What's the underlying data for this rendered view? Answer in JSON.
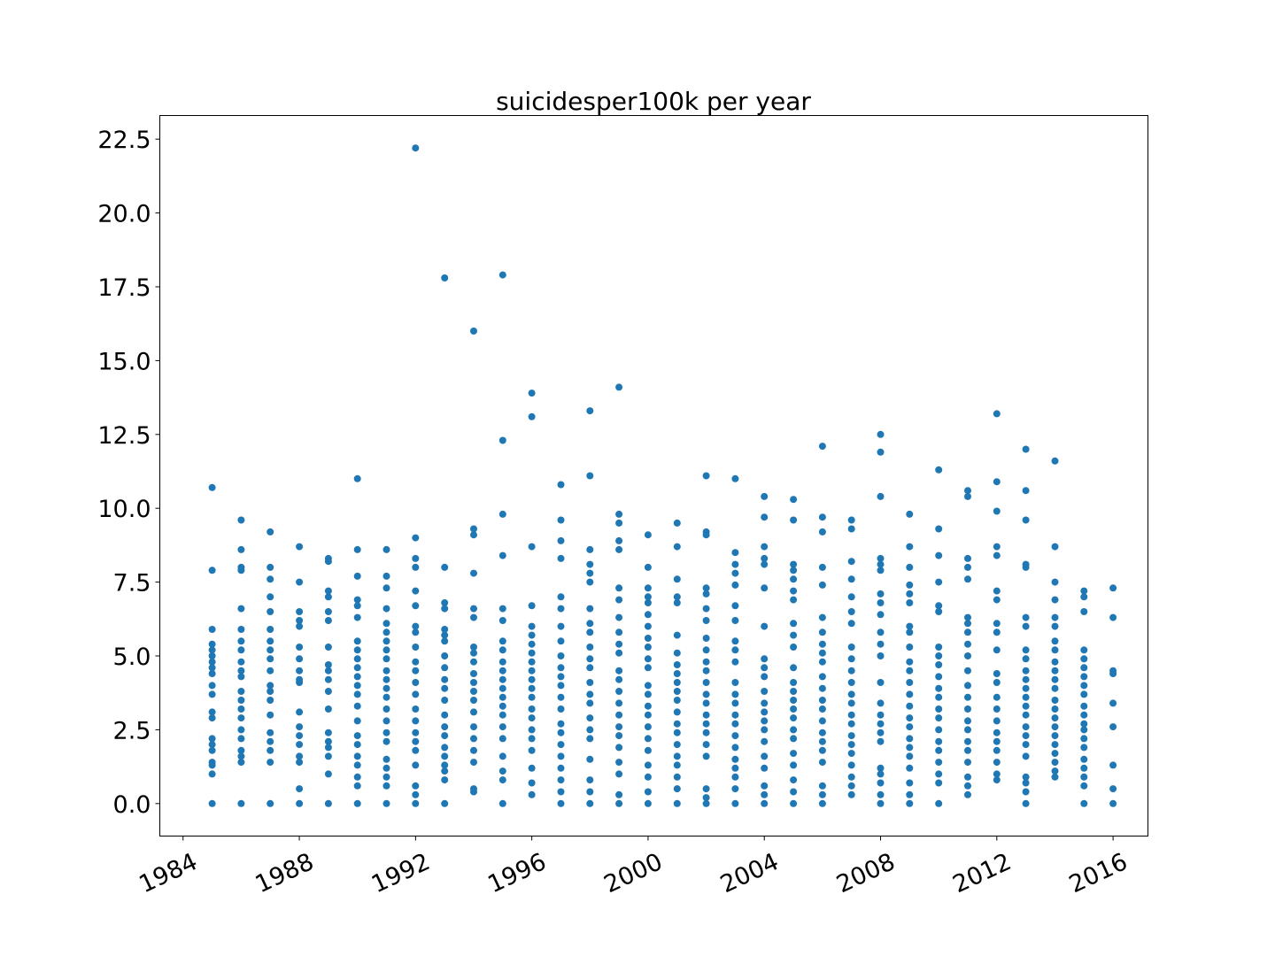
{
  "chart_data": {
    "type": "scatter",
    "title": "suicidesper100k per year",
    "xlabel": "",
    "ylabel": "",
    "xlim": [
      1983.2,
      2017.2
    ],
    "ylim": [
      -1.1,
      23.3
    ],
    "x_ticks": [
      1984,
      1988,
      1992,
      1996,
      2000,
      2004,
      2008,
      2012,
      2016
    ],
    "x_tick_labels": [
      "1984",
      "1988",
      "1992",
      "1996",
      "2000",
      "2004",
      "2008",
      "2012",
      "2016"
    ],
    "y_ticks": [
      0.0,
      2.5,
      5.0,
      7.5,
      10.0,
      12.5,
      15.0,
      17.5,
      20.0,
      22.5
    ],
    "y_tick_labels": [
      "0.0",
      "2.5",
      "5.0",
      "7.5",
      "10.0",
      "12.5",
      "15.0",
      "17.5",
      "20.0",
      "22.5"
    ],
    "grid": false,
    "legend": "none",
    "marker_color": "#1f77b4",
    "points_by_year": [
      {
        "x": 1985,
        "y": [
          10.7,
          7.9,
          5.9,
          5.4,
          5.2,
          5.0,
          4.8,
          4.6,
          4.4,
          4.0,
          3.7,
          3.1,
          2.9,
          2.2,
          2.0,
          1.8,
          1.4,
          1.3,
          1.0,
          0.0
        ]
      },
      {
        "x": 1986,
        "y": [
          9.6,
          8.6,
          8.0,
          7.9,
          6.6,
          5.9,
          5.5,
          5.2,
          4.8,
          4.5,
          4.3,
          3.8,
          3.5,
          3.2,
          2.9,
          2.5,
          2.2,
          1.8,
          1.6,
          1.4,
          0.0
        ]
      },
      {
        "x": 1987,
        "y": [
          9.2,
          8.0,
          7.6,
          7.0,
          6.5,
          5.9,
          5.5,
          5.2,
          4.9,
          4.5,
          4.0,
          3.8,
          3.5,
          3.0,
          2.4,
          2.1,
          1.8,
          1.4,
          0.0
        ]
      },
      {
        "x": 1988,
        "y": [
          8.7,
          7.5,
          6.5,
          6.2,
          6.0,
          5.3,
          4.9,
          4.5,
          4.2,
          4.1,
          3.1,
          2.6,
          2.3,
          2.0,
          1.6,
          1.4,
          0.5,
          0.0
        ]
      },
      {
        "x": 1989,
        "y": [
          8.3,
          8.2,
          7.2,
          7.0,
          6.5,
          6.2,
          5.3,
          4.7,
          4.5,
          4.2,
          3.8,
          3.2,
          2.4,
          2.1,
          1.9,
          1.6,
          1.0,
          0.0
        ]
      },
      {
        "x": 1990,
        "y": [
          11.0,
          8.6,
          7.7,
          6.9,
          6.7,
          6.3,
          5.5,
          5.2,
          4.9,
          4.6,
          4.3,
          4.0,
          3.7,
          3.3,
          2.8,
          2.3,
          2.0,
          1.6,
          1.3,
          0.9,
          0.6,
          0.0
        ]
      },
      {
        "x": 1991,
        "y": [
          8.6,
          7.7,
          7.3,
          6.6,
          6.1,
          5.8,
          5.5,
          5.2,
          4.9,
          4.5,
          4.2,
          3.9,
          3.6,
          3.2,
          2.8,
          2.4,
          2.1,
          1.5,
          1.2,
          0.9,
          0.6,
          0.0
        ]
      },
      {
        "x": 1992,
        "y": [
          22.2,
          9.0,
          8.3,
          8.0,
          7.2,
          6.7,
          6.0,
          5.8,
          5.3,
          4.8,
          4.5,
          4.1,
          3.7,
          3.2,
          2.8,
          2.4,
          2.1,
          1.8,
          1.3,
          0.6,
          0.3,
          0.0
        ]
      },
      {
        "x": 1993,
        "y": [
          17.8,
          8.0,
          6.8,
          6.6,
          5.9,
          5.7,
          5.5,
          5.0,
          4.6,
          4.2,
          3.9,
          3.5,
          3.0,
          2.6,
          2.3,
          1.9,
          1.6,
          1.3,
          1.1,
          0.8,
          0.0
        ]
      },
      {
        "x": 1994,
        "y": [
          16.0,
          9.3,
          9.1,
          7.8,
          6.6,
          6.3,
          5.3,
          5.1,
          4.8,
          4.4,
          4.1,
          3.8,
          3.5,
          3.1,
          2.6,
          2.2,
          1.8,
          1.4,
          0.5,
          0.4
        ]
      },
      {
        "x": 1995,
        "y": [
          17.9,
          12.3,
          9.8,
          8.4,
          6.6,
          6.2,
          5.5,
          5.2,
          4.8,
          4.5,
          4.2,
          3.9,
          3.6,
          3.3,
          3.0,
          2.6,
          2.2,
          1.6,
          1.1,
          0.8,
          0.0
        ]
      },
      {
        "x": 1996,
        "y": [
          13.9,
          13.1,
          8.7,
          6.7,
          6.0,
          5.7,
          5.4,
          5.1,
          4.8,
          4.5,
          4.2,
          3.9,
          3.6,
          3.2,
          2.9,
          2.5,
          2.2,
          1.8,
          1.2,
          0.7,
          0.3
        ]
      },
      {
        "x": 1997,
        "y": [
          10.8,
          9.6,
          8.9,
          8.3,
          7.0,
          6.6,
          6.0,
          5.5,
          5.0,
          4.6,
          4.3,
          4.0,
          3.6,
          3.2,
          2.7,
          2.4,
          2.0,
          1.6,
          1.2,
          0.8,
          0.4,
          0.0
        ]
      },
      {
        "x": 1998,
        "y": [
          13.3,
          11.1,
          8.6,
          8.1,
          7.8,
          7.5,
          6.6,
          6.1,
          5.8,
          5.3,
          4.9,
          4.6,
          4.1,
          3.7,
          3.4,
          2.9,
          2.5,
          2.2,
          1.5,
          0.8,
          0.4,
          0.0
        ]
      },
      {
        "x": 1999,
        "y": [
          14.1,
          9.8,
          9.5,
          8.9,
          8.6,
          7.3,
          6.9,
          6.3,
          5.8,
          5.4,
          5.1,
          4.5,
          4.2,
          3.8,
          3.4,
          3.0,
          2.6,
          2.3,
          1.9,
          1.4,
          1.0,
          0.3,
          0.0
        ]
      },
      {
        "x": 2000,
        "y": [
          9.1,
          8.0,
          7.3,
          7.0,
          6.8,
          6.4,
          6.0,
          5.6,
          5.3,
          4.9,
          4.6,
          4.0,
          3.7,
          3.3,
          3.0,
          2.6,
          2.2,
          1.8,
          1.3,
          0.9,
          0.4,
          0.0
        ]
      },
      {
        "x": 2001,
        "y": [
          9.5,
          8.7,
          7.6,
          7.0,
          6.8,
          5.7,
          5.1,
          4.7,
          4.4,
          4.1,
          3.8,
          3.5,
          3.1,
          2.7,
          2.4,
          2.0,
          1.6,
          1.3,
          0.9,
          0.5,
          0.0
        ]
      },
      {
        "x": 2002,
        "y": [
          11.1,
          9.2,
          9.1,
          7.3,
          7.1,
          6.6,
          6.2,
          5.6,
          5.2,
          4.8,
          4.5,
          4.1,
          3.7,
          3.4,
          3.0,
          2.7,
          2.4,
          2.0,
          1.6,
          0.5,
          0.2,
          0.0
        ]
      },
      {
        "x": 2003,
        "y": [
          11.0,
          8.5,
          8.1,
          7.8,
          7.4,
          6.7,
          6.2,
          5.5,
          5.2,
          4.8,
          4.1,
          3.7,
          3.4,
          3.0,
          2.7,
          2.3,
          1.9,
          1.5,
          1.2,
          0.9,
          0.5,
          0.0
        ]
      },
      {
        "x": 2004,
        "y": [
          10.4,
          9.7,
          8.7,
          8.3,
          8.1,
          7.3,
          6.0,
          4.9,
          4.6,
          4.3,
          3.8,
          3.4,
          3.1,
          2.8,
          2.5,
          2.1,
          1.6,
          1.2,
          0.6,
          0.3,
          0.0
        ]
      },
      {
        "x": 2005,
        "y": [
          10.3,
          9.6,
          8.1,
          7.9,
          7.6,
          7.2,
          6.9,
          6.1,
          5.7,
          5.3,
          4.6,
          4.1,
          3.8,
          3.5,
          3.2,
          2.9,
          2.5,
          2.2,
          1.7,
          1.3,
          0.8,
          0.4,
          0.0
        ]
      },
      {
        "x": 2006,
        "y": [
          12.1,
          9.7,
          9.2,
          8.0,
          7.4,
          6.3,
          5.8,
          5.4,
          5.1,
          4.8,
          4.3,
          3.9,
          3.5,
          3.2,
          2.8,
          2.4,
          2.1,
          1.8,
          1.4,
          0.6,
          0.3,
          0.0
        ]
      },
      {
        "x": 2007,
        "y": [
          9.6,
          9.3,
          8.2,
          7.6,
          7.0,
          6.5,
          6.1,
          5.3,
          4.9,
          4.5,
          4.1,
          3.7,
          3.4,
          3.0,
          2.7,
          2.3,
          2.0,
          1.7,
          1.3,
          0.9,
          0.6,
          0.3
        ]
      },
      {
        "x": 2008,
        "y": [
          12.5,
          11.9,
          10.4,
          8.3,
          8.1,
          7.9,
          7.1,
          6.8,
          6.4,
          5.8,
          5.4,
          5.0,
          4.1,
          3.4,
          3.0,
          2.7,
          2.4,
          2.1,
          1.2,
          1.0,
          0.7,
          0.3,
          0.0
        ]
      },
      {
        "x": 2009,
        "y": [
          9.8,
          8.7,
          8.0,
          7.4,
          7.1,
          6.8,
          6.0,
          5.8,
          5.3,
          4.8,
          4.5,
          4.1,
          3.7,
          3.3,
          2.9,
          2.6,
          2.2,
          1.9,
          1.6,
          1.2,
          0.7,
          0.3,
          0.0
        ]
      },
      {
        "x": 2010,
        "y": [
          11.3,
          9.3,
          8.4,
          7.5,
          6.7,
          6.5,
          5.3,
          5.0,
          4.7,
          4.3,
          3.9,
          3.6,
          3.2,
          2.9,
          2.5,
          2.1,
          1.8,
          1.4,
          1.0,
          0.7,
          0.0
        ]
      },
      {
        "x": 2011,
        "y": [
          10.6,
          10.4,
          8.3,
          8.0,
          7.6,
          6.3,
          6.1,
          5.8,
          5.4,
          5.0,
          4.5,
          4.0,
          3.6,
          3.2,
          2.8,
          2.5,
          2.1,
          1.8,
          1.4,
          0.9,
          0.6,
          0.3
        ]
      },
      {
        "x": 2012,
        "y": [
          13.2,
          10.9,
          9.9,
          8.7,
          8.4,
          7.2,
          6.9,
          6.1,
          5.8,
          5.2,
          4.4,
          4.1,
          3.6,
          3.2,
          2.8,
          2.4,
          2.1,
          1.8,
          1.4,
          1.0,
          0.8
        ]
      },
      {
        "x": 2013,
        "y": [
          12.0,
          10.6,
          9.6,
          8.1,
          8.0,
          6.3,
          6.0,
          5.2,
          4.9,
          4.5,
          4.2,
          3.9,
          3.6,
          3.3,
          3.0,
          2.6,
          2.3,
          2.0,
          1.6,
          0.9,
          0.7,
          0.4,
          0.0
        ]
      },
      {
        "x": 2014,
        "y": [
          11.6,
          8.7,
          7.5,
          6.9,
          6.3,
          6.0,
          5.5,
          5.2,
          4.8,
          4.5,
          4.2,
          3.9,
          3.5,
          3.2,
          2.9,
          2.6,
          2.3,
          2.0,
          1.7,
          1.4,
          1.1,
          0.9
        ]
      },
      {
        "x": 2015,
        "y": [
          7.2,
          7.0,
          6.5,
          5.2,
          4.9,
          4.6,
          4.3,
          4.0,
          3.7,
          3.3,
          3.0,
          2.7,
          2.5,
          2.2,
          1.9,
          1.5,
          1.2,
          0.9,
          0.6,
          0.0
        ]
      },
      {
        "x": 2016,
        "y": [
          7.3,
          6.3,
          4.5,
          4.4,
          3.4,
          2.6,
          1.3,
          0.5,
          0.0
        ]
      }
    ]
  }
}
